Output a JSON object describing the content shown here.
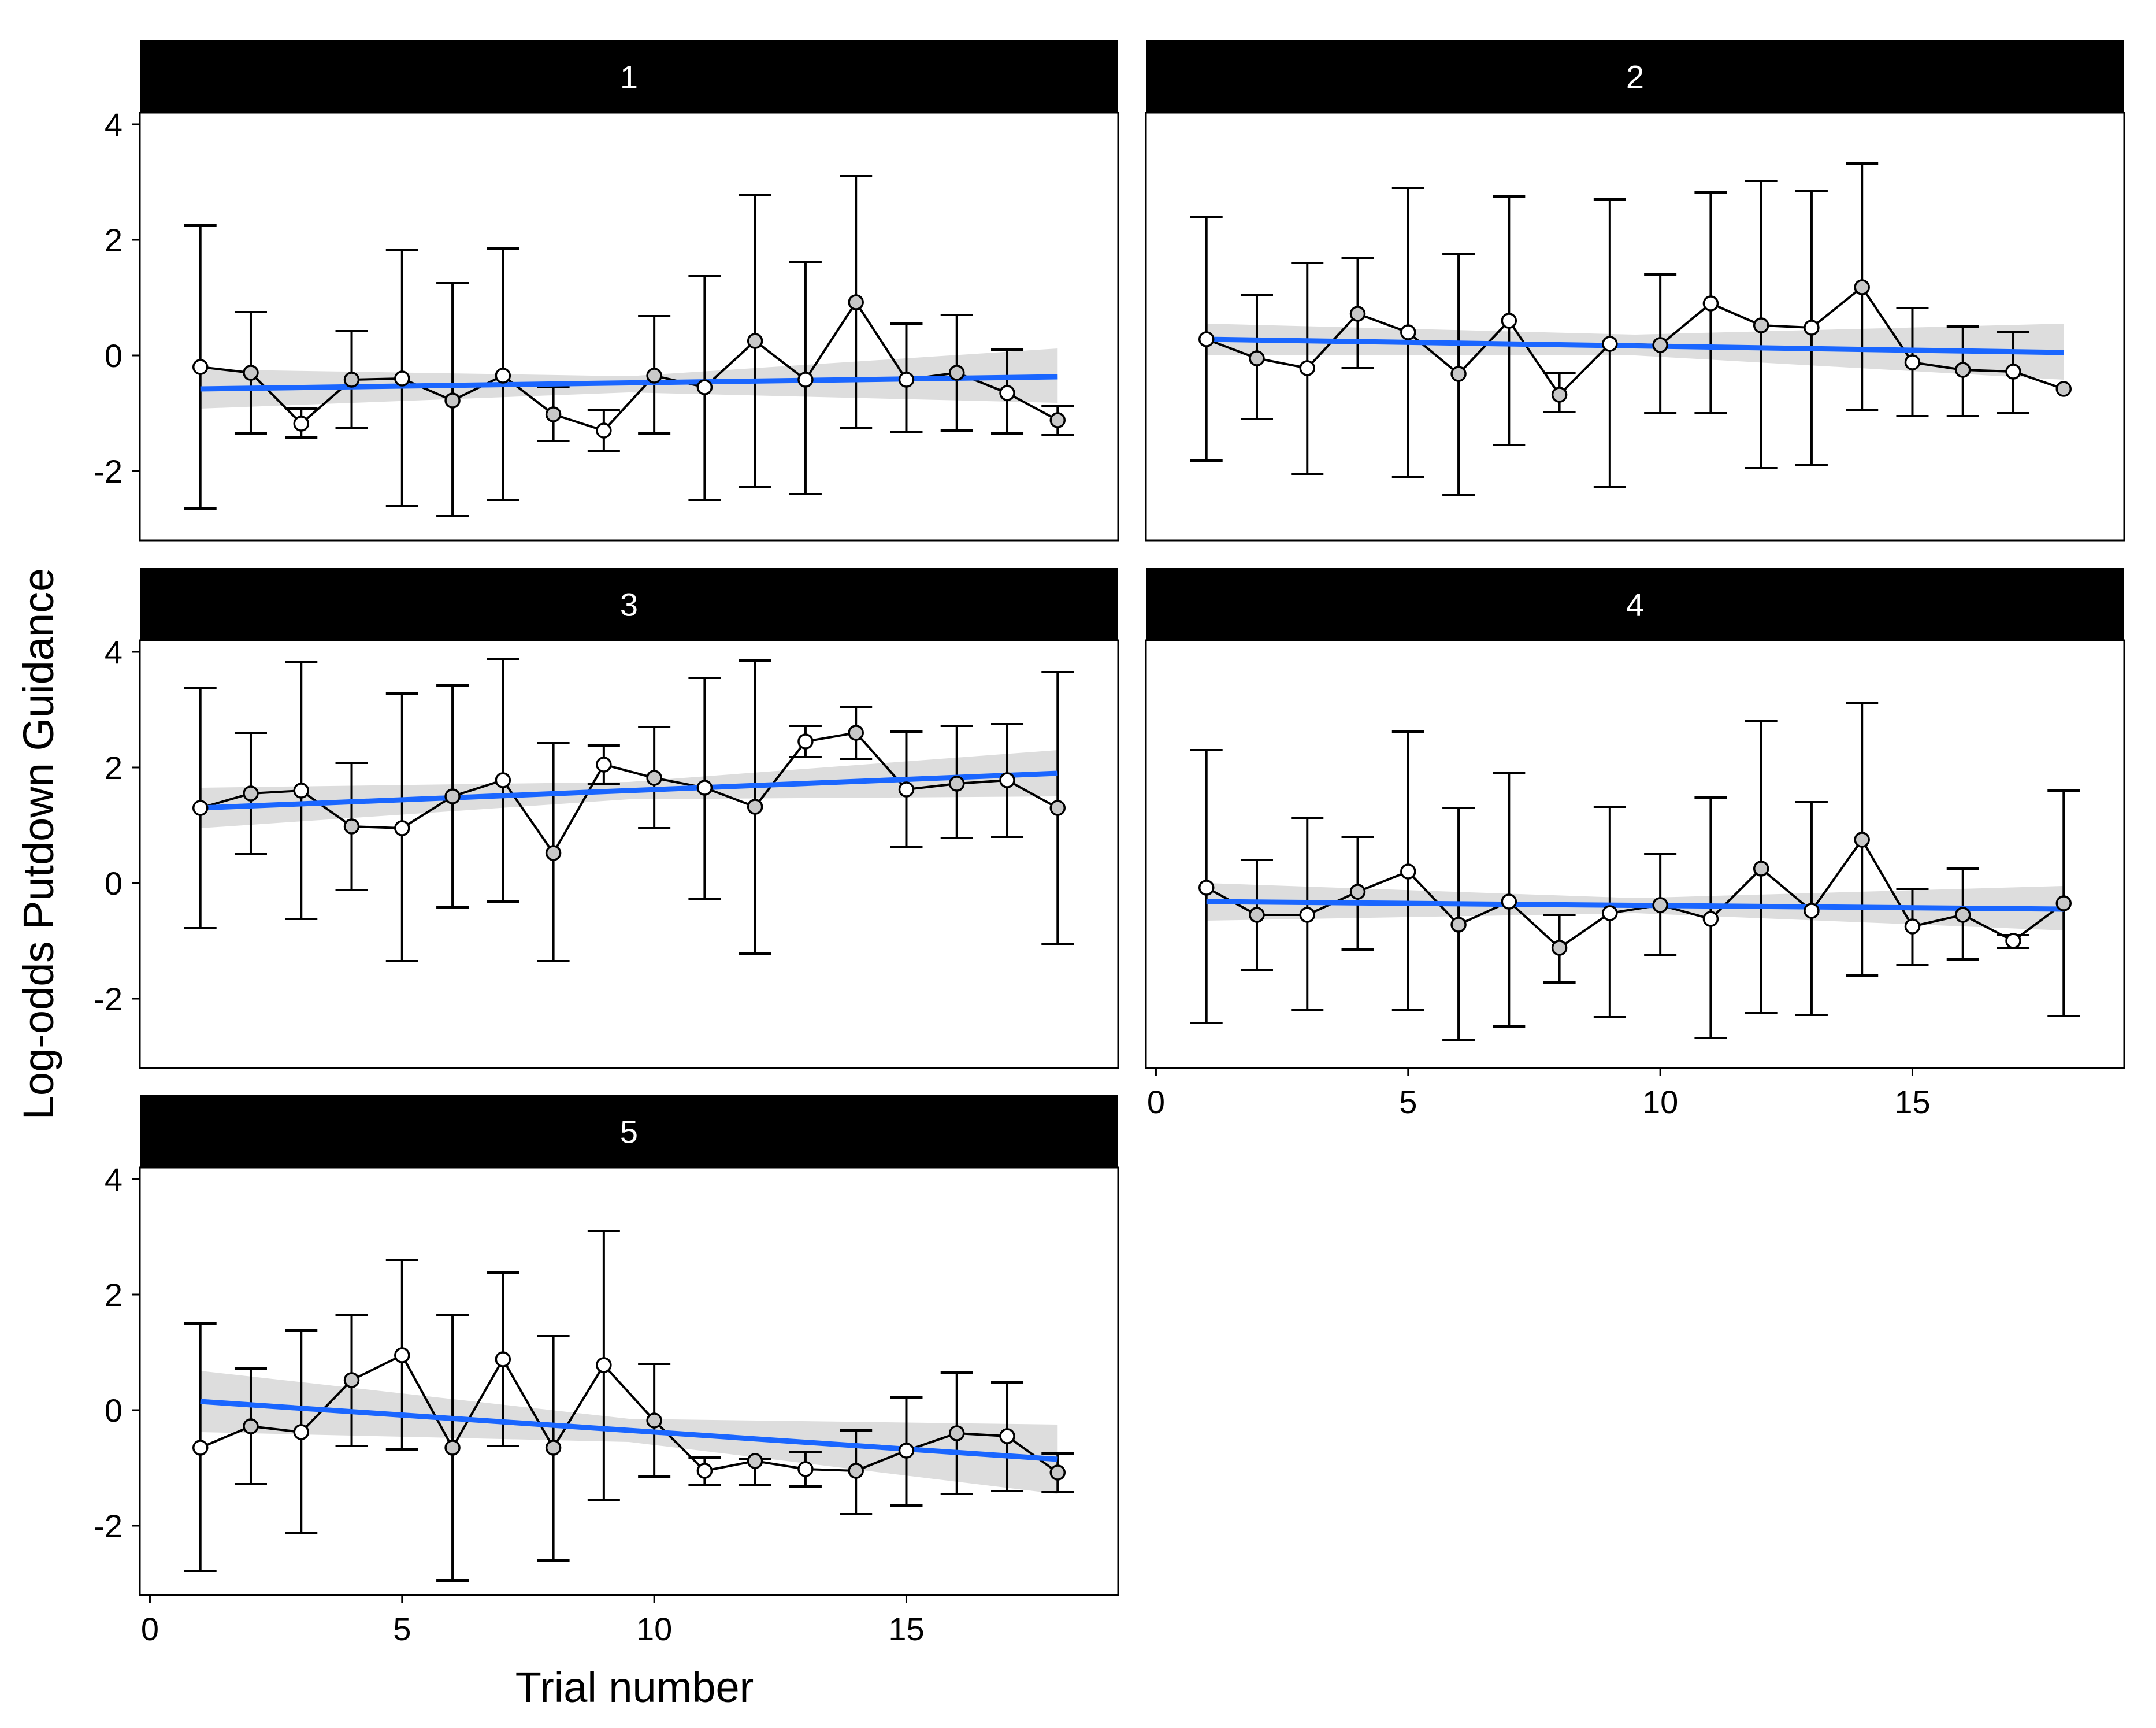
{
  "chart_data": {
    "type": "line",
    "facet_titles": [
      "1",
      "2",
      "3",
      "4",
      "5"
    ],
    "xlabel": "Trial number",
    "ylabel": "Log-odds Putdown Guidance",
    "xlim": [
      -0.2,
      19.2
    ],
    "ylim": [
      -3.2,
      4.2
    ],
    "xticks": [
      0,
      5,
      10,
      15
    ],
    "yticks": [
      -2,
      0,
      2,
      4
    ],
    "x": [
      1,
      2,
      3,
      4,
      5,
      6,
      7,
      8,
      9,
      10,
      11,
      12,
      13,
      14,
      15,
      16,
      17,
      18
    ],
    "colors": {
      "trend_line": "#1a66ff",
      "confidence_band": "#d9d9d9",
      "strip": "#000000",
      "marker_fill": "#ffffff",
      "marker_fill_secondary": "#c8c8c8"
    },
    "facets": [
      {
        "title": "1",
        "y": [
          -0.2,
          -0.3,
          -1.18,
          -0.42,
          -0.4,
          -0.78,
          -0.35,
          -1.02,
          -1.3,
          -0.35,
          -0.55,
          0.25,
          -0.42,
          0.92,
          -0.42,
          -0.3,
          -0.65,
          -1.12
        ],
        "lower": [
          -2.65,
          -1.35,
          -1.42,
          -1.25,
          -2.6,
          -2.78,
          -2.5,
          -1.48,
          -1.65,
          -1.35,
          -2.5,
          -2.28,
          -2.4,
          -1.25,
          -1.32,
          -1.3,
          -1.35,
          -1.38
        ],
        "upper": [
          2.25,
          0.75,
          -0.92,
          0.42,
          1.82,
          1.25,
          1.85,
          -0.55,
          -0.95,
          0.68,
          1.38,
          2.78,
          1.62,
          3.1,
          0.55,
          0.7,
          0.1,
          -0.88
        ],
        "trend": {
          "x": [
            1,
            18
          ],
          "y": [
            -0.58,
            -0.37
          ]
        },
        "band": {
          "x": [
            1,
            9.5,
            18
          ],
          "lower": [
            -0.92,
            -0.64,
            -0.82
          ],
          "upper": [
            -0.24,
            -0.36,
            0.12
          ]
        }
      },
      {
        "title": "2",
        "y": [
          0.28,
          -0.05,
          -0.22,
          0.72,
          0.4,
          -0.32,
          0.6,
          -0.68,
          0.2,
          0.18,
          0.9,
          0.52,
          0.48,
          1.18,
          -0.12,
          -0.25,
          -0.28,
          -0.58
        ],
        "lower": [
          -1.82,
          -1.1,
          -2.05,
          -0.22,
          -2.1,
          -2.42,
          -1.55,
          -0.98,
          -2.28,
          -1.0,
          -1.0,
          -1.95,
          -1.9,
          -0.95,
          -1.05,
          -1.05,
          -1.0,
          null
        ],
        "upper": [
          2.4,
          1.05,
          1.6,
          1.68,
          2.9,
          1.75,
          2.75,
          -0.3,
          2.7,
          1.4,
          2.82,
          3.02,
          2.85,
          3.32,
          0.82,
          0.5,
          0.4,
          null
        ],
        "trend": {
          "x": [
            1,
            18
          ],
          "y": [
            0.28,
            0.05
          ]
        },
        "band": {
          "x": [
            1,
            9.5,
            18
          ],
          "lower": [
            0.0,
            0.0,
            -0.42
          ],
          "upper": [
            0.55,
            0.36,
            0.55
          ]
        }
      },
      {
        "title": "3",
        "y": [
          1.3,
          1.55,
          1.6,
          0.98,
          0.95,
          1.5,
          1.78,
          0.52,
          2.05,
          1.82,
          1.65,
          1.32,
          2.45,
          2.6,
          1.62,
          1.72,
          1.78,
          1.3
        ],
        "lower": [
          -0.78,
          0.5,
          -0.62,
          -0.12,
          -1.35,
          -0.42,
          -0.32,
          -1.35,
          1.72,
          0.95,
          -0.28,
          -1.22,
          2.18,
          2.15,
          0.62,
          0.78,
          0.8,
          -1.05
        ],
        "upper": [
          3.38,
          2.6,
          3.82,
          2.08,
          3.28,
          3.42,
          3.88,
          2.42,
          2.38,
          2.7,
          3.55,
          3.85,
          2.72,
          3.05,
          2.62,
          2.72,
          2.75,
          3.65
        ],
        "trend": {
          "x": [
            1,
            18
          ],
          "y": [
            1.3,
            1.9
          ]
        },
        "band": {
          "x": [
            1,
            9.5,
            18
          ],
          "lower": [
            0.95,
            1.45,
            1.5
          ],
          "upper": [
            1.65,
            1.75,
            2.3
          ]
        }
      },
      {
        "title": "4",
        "y": [
          -0.08,
          -0.55,
          -0.55,
          -0.15,
          0.2,
          -0.72,
          -0.32,
          -1.12,
          -0.52,
          -0.38,
          -0.62,
          0.25,
          -0.48,
          0.75,
          -0.75,
          -0.55,
          -1.0,
          -0.35
        ],
        "lower": [
          -2.42,
          -1.5,
          -2.2,
          -1.15,
          -2.2,
          -2.72,
          -2.48,
          -1.72,
          -2.32,
          -1.25,
          -2.68,
          -2.25,
          -2.28,
          -1.6,
          -1.42,
          -1.32,
          -1.12,
          -2.3
        ],
        "upper": [
          2.3,
          0.4,
          1.12,
          0.8,
          2.62,
          1.3,
          1.9,
          -0.55,
          1.32,
          0.5,
          1.48,
          2.8,
          1.4,
          3.12,
          -0.1,
          0.25,
          -0.9,
          1.6
        ],
        "trend": {
          "x": [
            1,
            18
          ],
          "y": [
            -0.32,
            -0.45
          ]
        },
        "band": {
          "x": [
            1,
            9.5,
            18
          ],
          "lower": [
            -0.65,
            -0.52,
            -0.82
          ],
          "upper": [
            0.0,
            -0.26,
            -0.05
          ]
        }
      },
      {
        "title": "5",
        "y": [
          -0.65,
          -0.28,
          -0.38,
          0.52,
          0.95,
          -0.65,
          0.88,
          -0.65,
          0.78,
          -0.18,
          -1.05,
          -0.88,
          -1.02,
          -1.05,
          -0.7,
          -0.4,
          -0.45,
          -1.08
        ],
        "lower": [
          -2.78,
          -1.28,
          -2.12,
          -0.62,
          -0.68,
          -2.95,
          -0.62,
          -2.6,
          -1.55,
          -1.15,
          -1.3,
          -1.3,
          -1.32,
          -1.8,
          -1.65,
          -1.45,
          -1.4,
          -1.42
        ],
        "upper": [
          1.5,
          0.72,
          1.38,
          1.65,
          2.6,
          1.65,
          2.38,
          1.28,
          3.1,
          0.8,
          -0.82,
          -0.85,
          -0.72,
          -0.35,
          0.22,
          0.65,
          0.48,
          -0.75
        ],
        "trend": {
          "x": [
            1,
            18
          ],
          "y": [
            0.15,
            -0.85
          ]
        },
        "band": {
          "x": [
            1,
            9.5,
            18
          ],
          "lower": [
            -0.38,
            -0.55,
            -1.45
          ],
          "upper": [
            0.68,
            -0.15,
            -0.25
          ]
        }
      }
    ]
  }
}
